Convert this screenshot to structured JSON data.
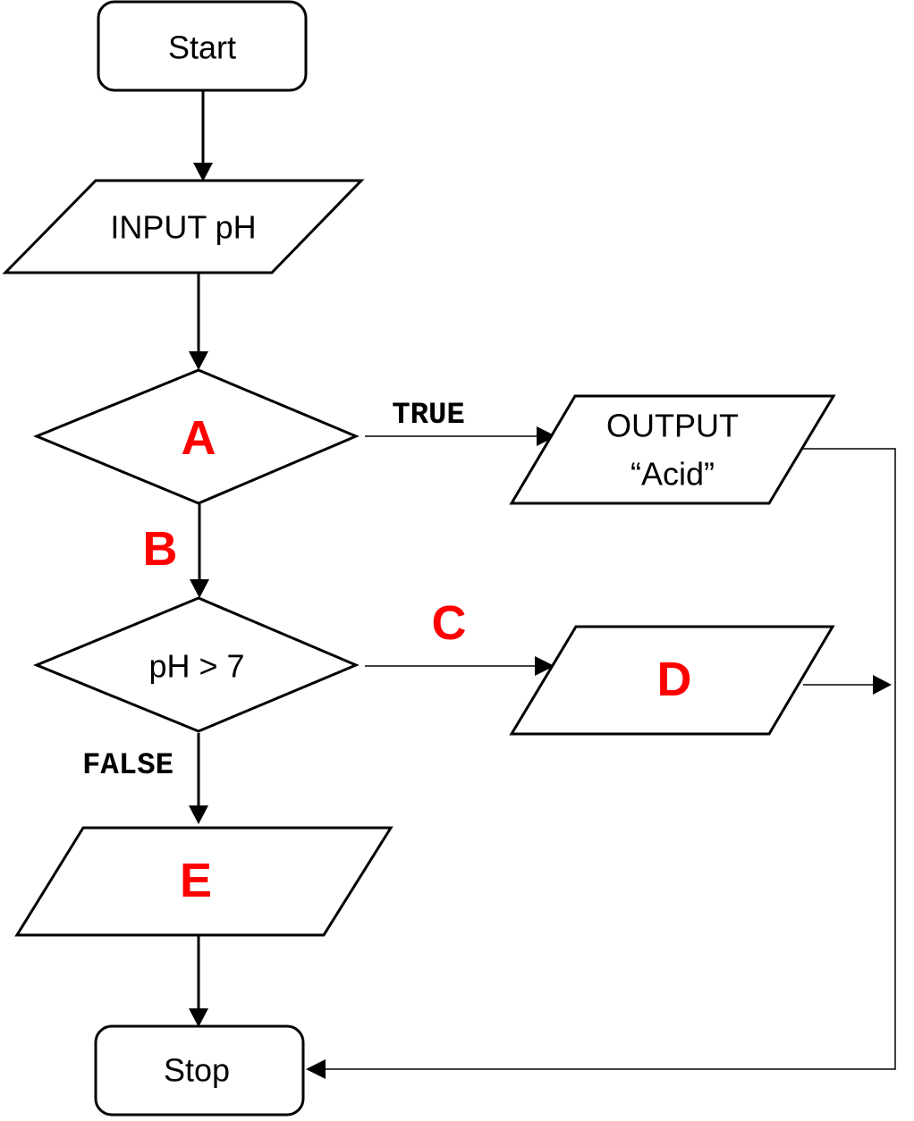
{
  "nodes": {
    "start": "Start",
    "input": "INPUT pH",
    "decision_a": "A",
    "output_acid_line1": "OUTPUT",
    "output_acid_line2": "“Acid”",
    "decision_ph": "pH > 7",
    "output_d": "D",
    "output_e": "E",
    "stop": "Stop"
  },
  "edge_labels": {
    "true": "TRUE",
    "false": "FALSE",
    "b": "B",
    "c": "C"
  },
  "colors": {
    "placeholder_letter": "#ff0000",
    "stroke": "#000000",
    "background": "#ffffff"
  }
}
